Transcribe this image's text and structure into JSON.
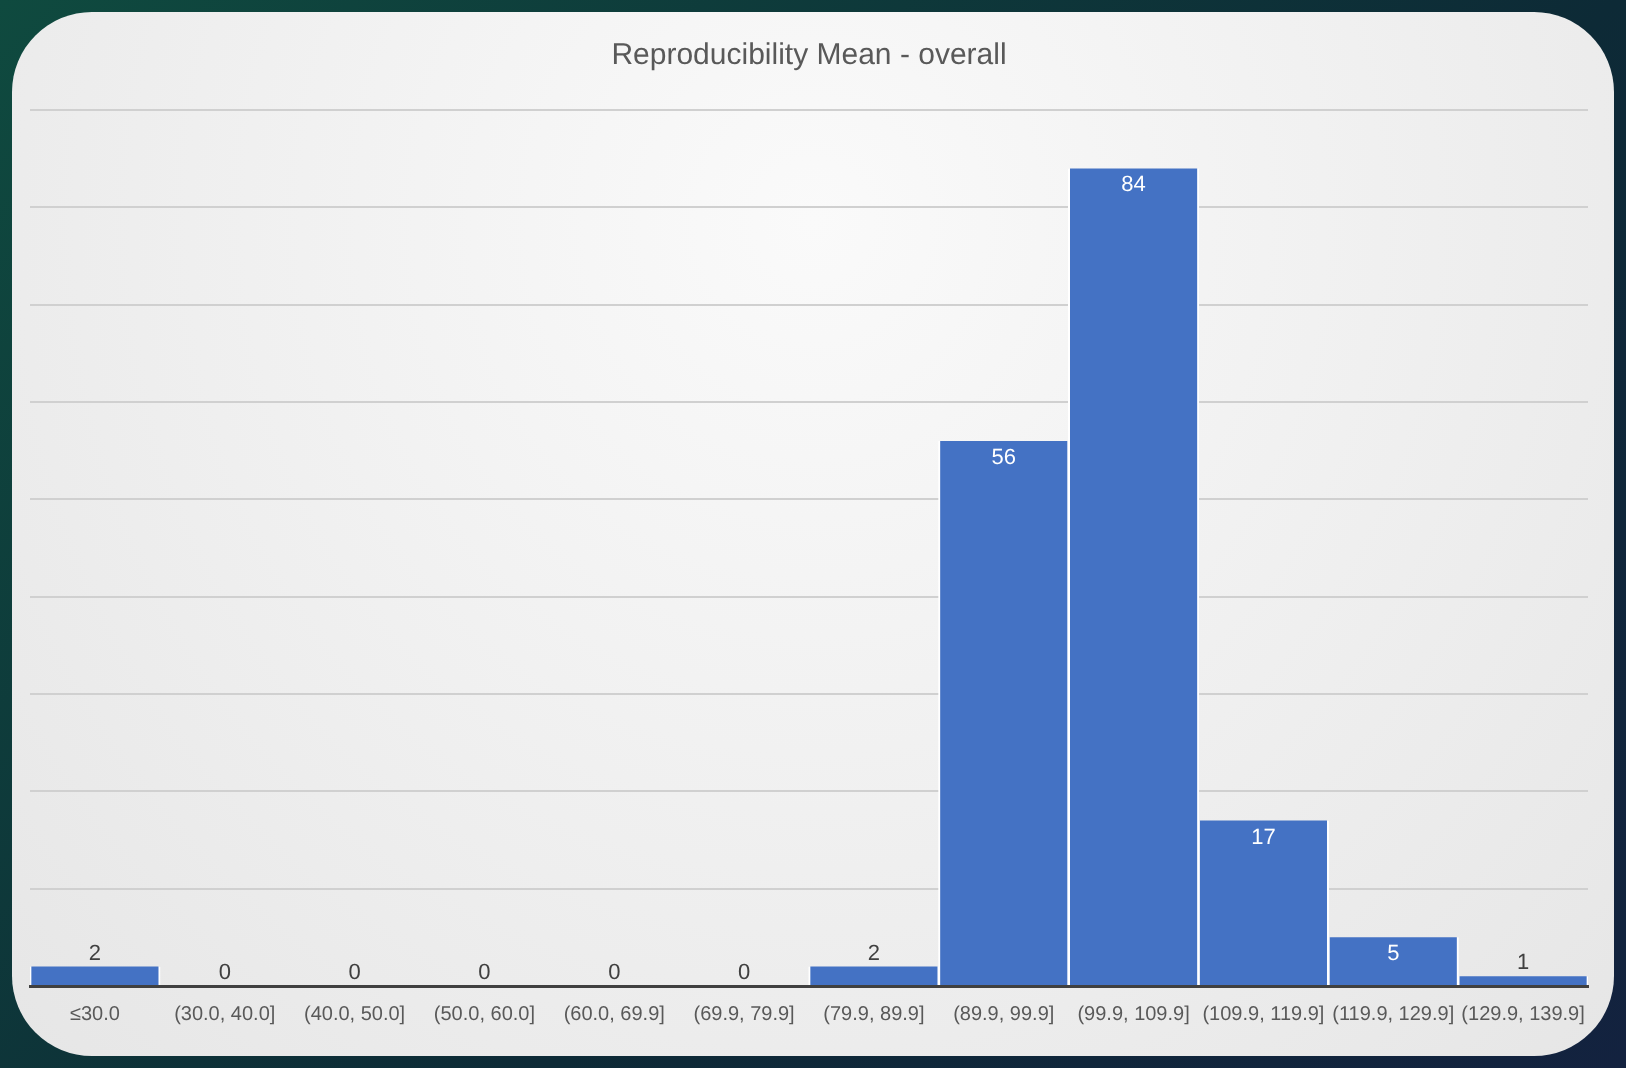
{
  "chart_data": {
    "type": "bar",
    "title": "Reproducibility Mean - overall",
    "categories": [
      "≤30.0",
      "(30.0, 40.0]",
      "(40.0, 50.0]",
      "(50.0, 60.0]",
      "(60.0, 69.9]",
      "(69.9, 79.9]",
      "(79.9, 89.9]",
      "(89.9, 99.9]",
      "(99.9, 109.9]",
      "(109.9, 119.9]",
      "(119.9, 129.9]",
      "(129.9, 139.9]"
    ],
    "values": [
      2,
      0,
      0,
      0,
      0,
      0,
      2,
      56,
      84,
      17,
      5,
      1
    ],
    "color": "#4472c4",
    "ylim": [
      0,
      90
    ],
    "yticks": [
      {
        "value": 0,
        "label": null
      },
      {
        "value": 10,
        "label": null
      },
      {
        "value": 20,
        "label": null
      },
      {
        "value": 30,
        "label": null
      },
      {
        "value": 40,
        "label": null
      },
      {
        "value": 50,
        "label": null
      },
      {
        "value": 60,
        "label": null
      },
      {
        "value": 70,
        "label": null
      },
      {
        "value": 80,
        "label": null
      },
      {
        "value": 90,
        "label": null
      }
    ],
    "tick_labels": "x",
    "grid": "y",
    "data_labels": true
  }
}
